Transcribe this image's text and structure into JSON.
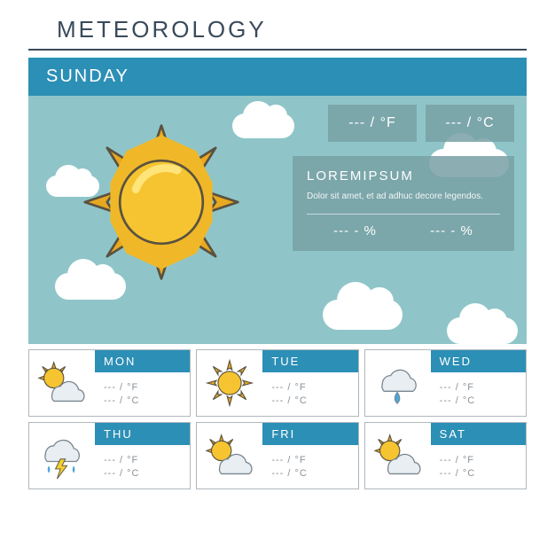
{
  "title": "METEOROLOGY",
  "current_day": "SUNDAY",
  "colors": {
    "accent": "#2c8fb5",
    "sky": "#8fc5c9",
    "overlay": "rgba(120,160,165,0.85)",
    "title_color": "#3a4a5a",
    "card_border": "#b0b8bc",
    "muted_text": "#8a9299",
    "sun_fill": "#f5c430",
    "sun_ray": "#e8a820",
    "sun_stroke": "#5a5240",
    "cloud_fill": "#e8eef2",
    "cloud_stroke": "#7a8690",
    "rain": "#4aa8d8",
    "bolt": "#f5d030"
  },
  "temps": {
    "f": "--- / °F",
    "c": "--- / °C"
  },
  "info": {
    "title": "LOREMIPSUM",
    "text": "Dolor sit amet, et ad adhuc decore legendos.",
    "pct1": "--- - %",
    "pct2": "--- - %"
  },
  "forecast": [
    {
      "day": "MON",
      "icon": "sun-cloud",
      "f": "--- / °F",
      "c": "--- / °C"
    },
    {
      "day": "TUE",
      "icon": "sun",
      "f": "--- / °F",
      "c": "--- / °C"
    },
    {
      "day": "WED",
      "icon": "rain",
      "f": "--- / °F",
      "c": "--- / °C"
    },
    {
      "day": "THU",
      "icon": "storm",
      "f": "--- / °F",
      "c": "--- / °C"
    },
    {
      "day": "FRI",
      "icon": "sun-cloud",
      "f": "--- / °F",
      "c": "--- / °C"
    },
    {
      "day": "SAT",
      "icon": "sun-cloud",
      "f": "--- / °F",
      "c": "--- / °C"
    }
  ]
}
